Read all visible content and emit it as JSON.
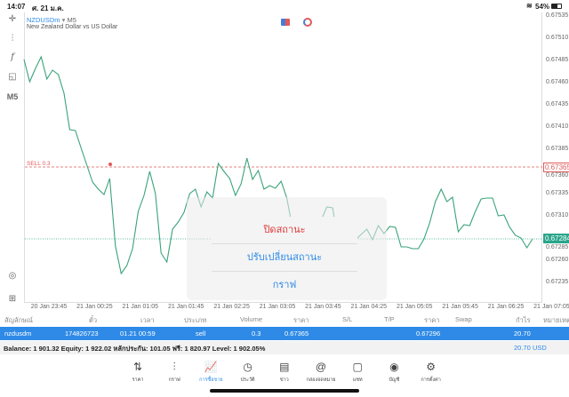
{
  "status_bar": {
    "time": "14:07",
    "date": "ศ. 21 ม.ค.",
    "battery": "54%",
    "wifi_icon": "wifi-icon"
  },
  "chart_header": {
    "symbol": "NZDUSDm",
    "timeframe": "M5",
    "description": "New Zealand Dollar vs US Dollar"
  },
  "toolbar": {
    "timeframe_label": "M5"
  },
  "colors": {
    "line": "#3aa37a",
    "sell": "#e05a5a",
    "accent": "#2e8ae6",
    "current": "#2aa58a"
  },
  "chart_data": {
    "type": "line",
    "ylim": [
      0.67222,
      0.67548
    ],
    "y_ticks": [
      "0.67535",
      "0.67510",
      "0.67485",
      "0.67460",
      "0.67435",
      "0.67410",
      "0.67385",
      "0.67360",
      "0.67335",
      "0.67310",
      "0.67285",
      "0.67260",
      "0.67235"
    ],
    "x_ticks": [
      "20 Jan 23:45",
      "21 Jan 00:25",
      "21 Jan 01:05",
      "21 Jan 01:45",
      "21 Jan 02:25",
      "21 Jan 03:05",
      "21 Jan 03:45",
      "21 Jan 04:25",
      "21 Jan 05:05",
      "21 Jan 05:45",
      "21 Jan 06:25",
      "21 Jan 07:05"
    ],
    "values": [
      0.67486,
      0.67461,
      0.67476,
      0.67489,
      0.67464,
      0.67474,
      0.67469,
      0.67448,
      0.67407,
      0.67406,
      0.67386,
      0.67367,
      0.67348,
      0.6734,
      0.67334,
      0.67352,
      0.67276,
      0.67245,
      0.67254,
      0.67273,
      0.67315,
      0.67333,
      0.6736,
      0.67335,
      0.67268,
      0.67258,
      0.67295,
      0.67303,
      0.67314,
      0.67335,
      0.6734,
      0.6732,
      0.67337,
      0.6733,
      0.67369,
      0.6736,
      0.67352,
      0.67333,
      0.67346,
      0.67375,
      0.67351,
      0.67361,
      0.6734,
      0.67344,
      0.67341,
      0.67349,
      0.6733,
      0.67296,
      0.67293,
      0.67283,
      0.67268,
      0.67283,
      0.67305,
      0.6732,
      0.67319,
      0.67283,
      0.67291,
      0.67289,
      0.67283,
      0.67289,
      0.67295,
      0.67283,
      0.67299,
      0.6729,
      0.67298,
      0.67297,
      0.67275,
      0.67275,
      0.67273,
      0.67273,
      0.67284,
      0.67302,
      0.67326,
      0.6734,
      0.67326,
      0.67331,
      0.67292,
      0.673,
      0.67299,
      0.67315,
      0.67329,
      0.6733,
      0.6733,
      0.6731,
      0.67311,
      0.67297,
      0.67288,
      0.67285,
      0.67274,
      0.67284
    ],
    "sell_level": {
      "label": "SELL 0.3",
      "price": 0.67365,
      "price_label": "0.67365"
    },
    "current_price": {
      "price": 0.67284,
      "price_label": "0.67284"
    },
    "grid": false
  },
  "popup": {
    "close": "ปิดสถานะ",
    "modify": "ปรับเปลี่ยนสถานะ",
    "chart": "กราฟ"
  },
  "table": {
    "headers": [
      "สัญลักษณ์",
      "ตั๋ว",
      "เวลา",
      "ประเภท",
      "Volume",
      "ราคา",
      "S/L",
      "T/P",
      "ราคา",
      "Swap",
      "กำไร",
      "หมายเหตุ"
    ],
    "row": {
      "symbol": "nzdusdm",
      "ticket": "174826723",
      "time": "01.21 00:59",
      "type": "sell",
      "volume": "0.3",
      "open_price": "0.67365",
      "price": "0.67296",
      "profit": "20.70"
    }
  },
  "balance": {
    "text": "Balance: 1 901.32 Equity: 1 922.02 หลักประกัน: 101.05 ฟรี: 1 820.97 Level: 1 902.05%",
    "total": "20.70",
    "currency": "USD"
  },
  "nav": [
    {
      "label": "ราคา",
      "icon": "⇅"
    },
    {
      "label": "กราฟ",
      "icon": "⫶"
    },
    {
      "label": "การซื้อขาย",
      "icon": "📈"
    },
    {
      "label": "ประวัติ",
      "icon": "◷"
    },
    {
      "label": "ข่าว",
      "icon": "▤"
    },
    {
      "label": "กล่องจดหมาย",
      "icon": "@"
    },
    {
      "label": "แชท",
      "icon": "▢"
    },
    {
      "label": "บัญชี",
      "icon": "◉"
    },
    {
      "label": "การตั้งค่า",
      "icon": "⚙"
    }
  ]
}
